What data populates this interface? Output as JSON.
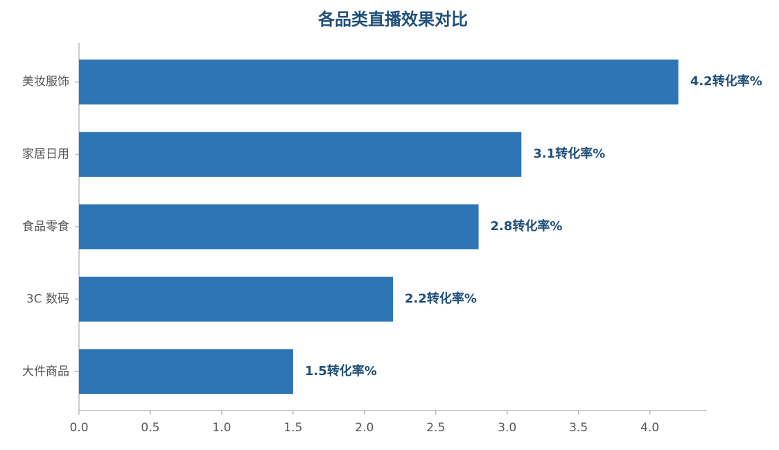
{
  "chart_data": {
    "type": "barh",
    "title": "各品类直播效果对比",
    "categories": [
      "美妆服饰",
      "家居日用",
      "食品零食",
      "3C 数码",
      "大件商品"
    ],
    "values": [
      4.2,
      3.1,
      2.8,
      2.2,
      1.5
    ],
    "value_labels": [
      "4.2转化率%",
      "3.1转化率%",
      "2.8转化率%",
      "2.2转化率%",
      "1.5转化率%"
    ],
    "color": "#2e75b6",
    "xlim": [
      0,
      4.4
    ],
    "xticks": [
      {
        "value": 0,
        "label": "0.0"
      },
      0.5,
      {
        "value": 1,
        "label": "1.0"
      },
      1.5,
      {
        "value": 2,
        "label": "2.0"
      },
      2.5,
      {
        "value": 3,
        "label": "3.0"
      },
      3.5,
      {
        "value": 4,
        "label": "4.0"
      }
    ],
    "grid": false
  }
}
